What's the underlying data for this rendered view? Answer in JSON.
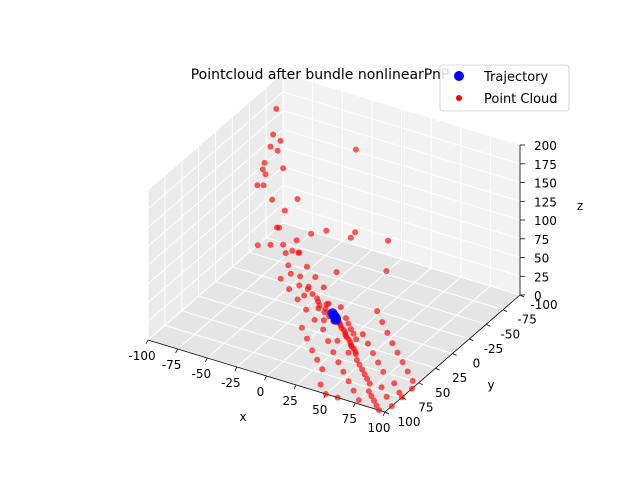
{
  "chart_data": {
    "type": "scatter",
    "projection": "3d",
    "title": "Pointcloud after bundle nonlinearPnP",
    "xlabel": "x",
    "ylabel": "y",
    "zlabel": "z",
    "xlim": [
      -100,
      100
    ],
    "ylim": [
      -100,
      100
    ],
    "zlim": [
      0,
      200
    ],
    "x_ticks": [
      "-100",
      "-75",
      "-50",
      "-25",
      "0",
      "25",
      "50",
      "75",
      "100"
    ],
    "y_ticks": [
      "-100",
      "-75",
      "-50",
      "-25",
      "0",
      "25",
      "50",
      "75",
      "100"
    ],
    "z_ticks": [
      "0",
      "25",
      "50",
      "75",
      "100",
      "125",
      "150",
      "175",
      "200"
    ],
    "grid": true,
    "legend_position": "top-right",
    "series": [
      {
        "name": "Trajectory",
        "color": "#0000ff",
        "points": [
          [
            -3,
            -3,
            2
          ],
          [
            -1,
            -1,
            2
          ],
          [
            1,
            1,
            3
          ],
          [
            2,
            2,
            3
          ],
          [
            4,
            4,
            4
          ],
          [
            5,
            6,
            4
          ]
        ]
      },
      {
        "name": "Point Cloud",
        "color": "#ff0000",
        "points": [
          [
            -100,
            -90,
            160
          ],
          [
            -98,
            -78,
            120
          ],
          [
            -100,
            -70,
            95
          ],
          [
            -97,
            -80,
            135
          ],
          [
            -100,
            -62,
            80
          ],
          [
            -96,
            -85,
            110
          ],
          [
            -90,
            -55,
            120
          ],
          [
            -92,
            -60,
            100
          ],
          [
            -85,
            -70,
            140
          ],
          [
            -80,
            -65,
            110
          ],
          [
            -88,
            -50,
            95
          ],
          [
            -75,
            -40,
            90
          ],
          [
            -70,
            -50,
            70
          ],
          [
            -68,
            -35,
            60
          ],
          [
            -72,
            -45,
            50
          ],
          [
            -65,
            -60,
            80
          ],
          [
            -60,
            -30,
            45
          ],
          [
            -55,
            -25,
            40
          ],
          [
            -58,
            -40,
            30
          ],
          [
            -50,
            -20,
            30
          ],
          [
            -45,
            -15,
            25
          ],
          [
            -40,
            -20,
            20
          ],
          [
            -35,
            -10,
            18
          ],
          [
            -30,
            -15,
            15
          ],
          [
            -28,
            -5,
            12
          ],
          [
            -25,
            -12,
            10
          ],
          [
            -20,
            -10,
            8
          ],
          [
            -18,
            -8,
            6
          ],
          [
            -15,
            -5,
            5
          ],
          [
            -12,
            -10,
            4
          ],
          [
            -10,
            -5,
            3
          ],
          [
            -8,
            0,
            3
          ],
          [
            -5,
            -2,
            2
          ],
          [
            -3,
            2,
            2
          ],
          [
            0,
            0,
            2
          ],
          [
            3,
            2,
            1
          ],
          [
            6,
            4,
            1
          ],
          [
            8,
            6,
            1
          ],
          [
            10,
            8,
            1
          ],
          [
            12,
            10,
            0
          ],
          [
            15,
            12,
            0
          ],
          [
            18,
            15,
            0
          ],
          [
            20,
            18,
            0
          ],
          [
            22,
            20,
            0
          ],
          [
            25,
            22,
            0
          ],
          [
            28,
            25,
            0
          ],
          [
            30,
            28,
            0
          ],
          [
            32,
            30,
            0
          ],
          [
            35,
            32,
            0
          ],
          [
            38,
            35,
            0
          ],
          [
            40,
            38,
            0
          ],
          [
            -8,
            -6,
            10
          ],
          [
            -12,
            2,
            8
          ],
          [
            0,
            -10,
            6
          ],
          [
            5,
            10,
            5
          ],
          [
            10,
            0,
            4
          ],
          [
            15,
            5,
            3
          ],
          [
            20,
            10,
            2
          ],
          [
            25,
            15,
            2
          ],
          [
            30,
            20,
            1
          ],
          [
            -20,
            -20,
            15
          ],
          [
            -30,
            -25,
            20
          ],
          [
            -40,
            -30,
            25
          ],
          [
            -50,
            -35,
            35
          ],
          [
            -15,
            -30,
            30
          ],
          [
            -25,
            -5,
            22
          ],
          [
            0,
            15,
            8
          ],
          [
            20,
            30,
            2
          ],
          [
            35,
            40,
            1
          ],
          [
            45,
            45,
            0
          ],
          [
            50,
            50,
            0
          ],
          [
            55,
            55,
            0
          ],
          [
            60,
            60,
            0
          ],
          [
            65,
            65,
            0
          ],
          [
            70,
            70,
            0
          ],
          [
            75,
            80,
            0
          ],
          [
            80,
            85,
            0
          ],
          [
            85,
            90,
            0
          ],
          [
            90,
            95,
            0
          ],
          [
            95,
            100,
            0
          ],
          [
            60,
            40,
            0
          ],
          [
            70,
            50,
            0
          ],
          [
            50,
            30,
            0
          ],
          [
            40,
            20,
            0
          ],
          [
            30,
            10,
            0
          ],
          [
            80,
            70,
            0
          ],
          [
            90,
            80,
            0
          ],
          [
            -5,
            -40,
            80
          ],
          [
            -10,
            -50,
            180
          ],
          [
            0,
            -80,
            40
          ],
          [
            10,
            -60,
            20
          ],
          [
            -20,
            -60,
            50
          ],
          [
            -35,
            -50,
            60
          ],
          [
            -45,
            -45,
            55
          ],
          [
            25,
            -20,
            5
          ],
          [
            35,
            -10,
            3
          ],
          [
            45,
            0,
            1
          ],
          [
            55,
            10,
            0
          ],
          [
            65,
            20,
            0
          ],
          [
            75,
            30,
            0
          ],
          [
            85,
            40,
            0
          ],
          [
            95,
            50,
            0
          ],
          [
            100,
            60,
            0
          ],
          [
            100,
            75,
            0
          ],
          [
            100,
            90,
            0
          ],
          [
            95,
            70,
            0
          ],
          [
            85,
            60,
            0
          ],
          [
            -60,
            -50,
            35
          ],
          [
            -55,
            -45,
            25
          ],
          [
            -65,
            -20,
            50
          ],
          [
            -70,
            -10,
            55
          ],
          [
            -45,
            0,
            30
          ],
          [
            -35,
            5,
            25
          ],
          [
            -25,
            10,
            20
          ],
          [
            -15,
            15,
            15
          ],
          [
            -5,
            20,
            10
          ],
          [
            5,
            25,
            6
          ],
          [
            15,
            35,
            3
          ],
          [
            25,
            45,
            1
          ],
          [
            35,
            55,
            0
          ],
          [
            45,
            65,
            0
          ],
          [
            55,
            75,
            0
          ],
          [
            65,
            85,
            0
          ],
          [
            75,
            95,
            0
          ],
          [
            10,
            50,
            0
          ],
          [
            20,
            60,
            0
          ],
          [
            30,
            70,
            0
          ],
          [
            -10,
            30,
            5
          ],
          [
            0,
            40,
            3
          ],
          [
            40,
            90,
            0
          ],
          [
            50,
            100,
            0
          ],
          [
            60,
            100,
            0
          ]
        ]
      }
    ]
  }
}
